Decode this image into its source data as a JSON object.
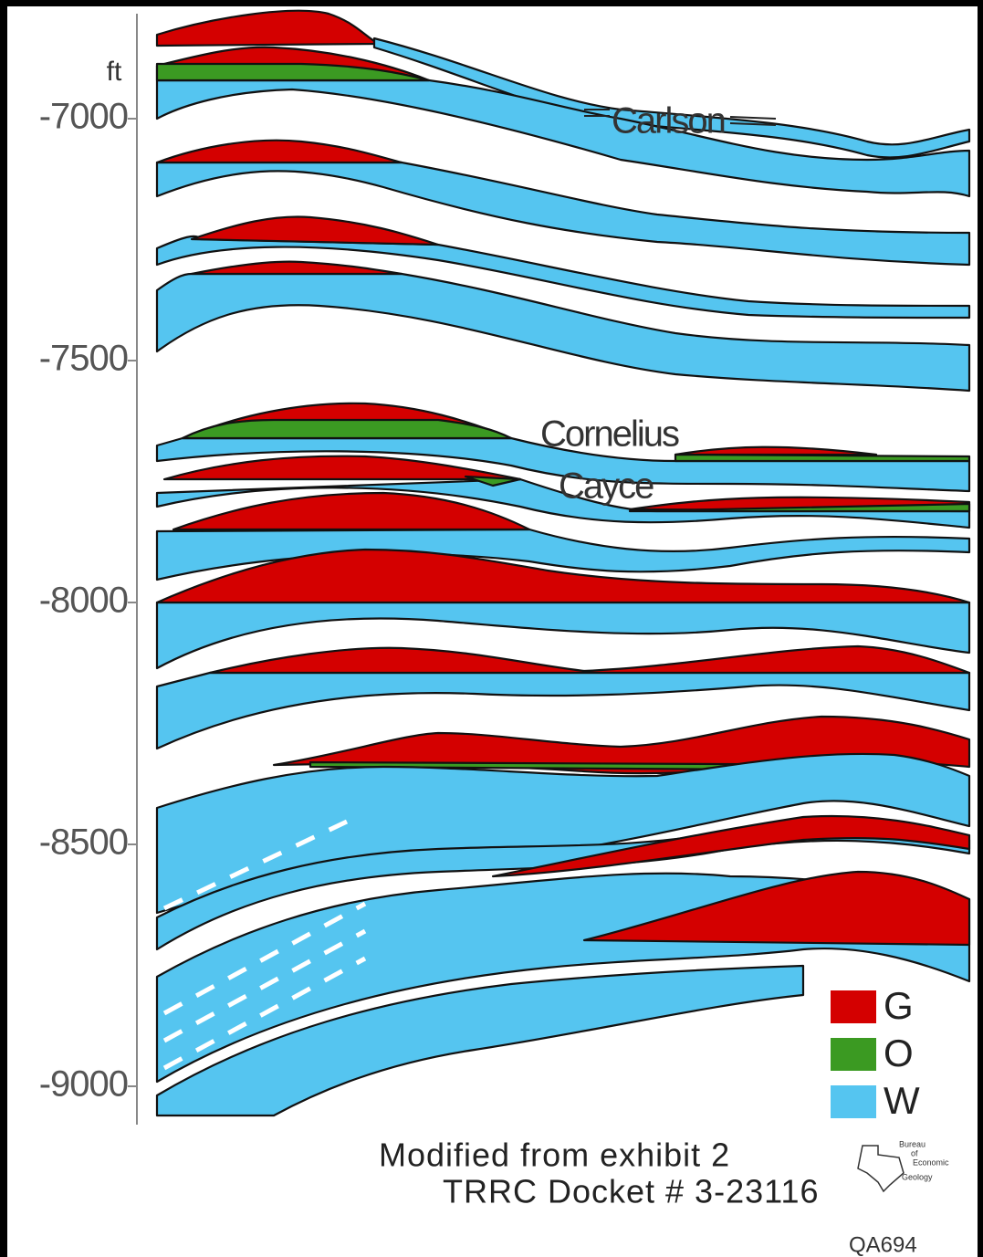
{
  "axis": {
    "unit": "ft",
    "ticks": [
      -7000,
      -7500,
      -8000,
      -8500,
      -9000
    ]
  },
  "formations": [
    "Carlson",
    "Cornelius",
    "Cayce"
  ],
  "legend": [
    {
      "label": "G",
      "color": "#d40000"
    },
    {
      "label": "O",
      "color": "#3b9a22"
    },
    {
      "label": "W",
      "color": "#55c5f0"
    }
  ],
  "caption": [
    "Modified from exhibit 2",
    "TRRC Docket # 3-23116"
  ],
  "logo": [
    "Bureau",
    "of",
    "Economic",
    "Geology"
  ],
  "figure_id": "QA694"
}
